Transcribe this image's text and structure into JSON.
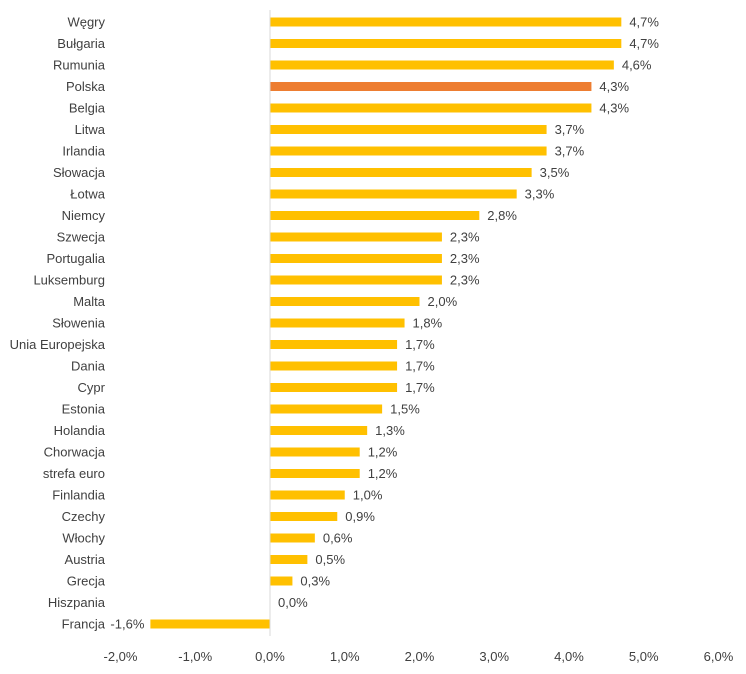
{
  "chart_data": {
    "type": "bar",
    "orientation": "horizontal",
    "title": "",
    "xlabel": "",
    "ylabel": "",
    "xlim": [
      -2.0,
      6.0
    ],
    "x_ticks": [
      -2.0,
      -1.0,
      0.0,
      1.0,
      2.0,
      3.0,
      4.0,
      5.0,
      6.0
    ],
    "x_tick_labels": [
      "-2,0%",
      "-1,0%",
      "0,0%",
      "1,0%",
      "2,0%",
      "3,0%",
      "4,0%",
      "5,0%",
      "6,0%"
    ],
    "grid": false,
    "legend": "none",
    "colors": {
      "default": "#FFC000",
      "highlight": "#ED7D31",
      "axis": "#D9D9D9",
      "text": "#404040"
    },
    "categories": [
      "Węgry",
      "Bułgaria",
      "Rumunia",
      "Polska",
      "Belgia",
      "Litwa",
      "Irlandia",
      "Słowacja",
      "Łotwa",
      "Niemcy",
      "Szwecja",
      "Portugalia",
      "Luksemburg",
      "Malta",
      "Słowenia",
      "Unia Europejska",
      "Dania",
      "Cypr",
      "Estonia",
      "Holandia",
      "Chorwacja",
      "strefa euro",
      "Finlandia",
      "Czechy",
      "Włochy",
      "Austria",
      "Grecja",
      "Hiszpania",
      "Francja"
    ],
    "values": [
      4.7,
      4.7,
      4.6,
      4.3,
      4.3,
      3.7,
      3.7,
      3.5,
      3.3,
      2.8,
      2.3,
      2.3,
      2.3,
      2.0,
      1.8,
      1.7,
      1.7,
      1.7,
      1.5,
      1.3,
      1.2,
      1.2,
      1.0,
      0.9,
      0.6,
      0.5,
      0.3,
      0.0,
      -1.6
    ],
    "data_labels": [
      "4,7%",
      "4,7%",
      "4,6%",
      "4,3%",
      "4,3%",
      "3,7%",
      "3,7%",
      "3,5%",
      "3,3%",
      "2,8%",
      "2,3%",
      "2,3%",
      "2,3%",
      "2,0%",
      "1,8%",
      "1,7%",
      "1,7%",
      "1,7%",
      "1,5%",
      "1,3%",
      "1,2%",
      "1,2%",
      "1,0%",
      "0,9%",
      "0,6%",
      "0,5%",
      "0,3%",
      "0,0%",
      "-1,6%"
    ],
    "highlight": "Polska"
  }
}
